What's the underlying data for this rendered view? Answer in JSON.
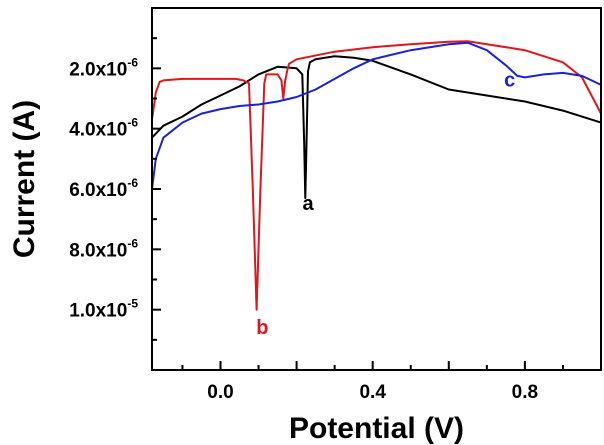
{
  "chart_data": {
    "type": "line",
    "xlabel": "Potential (V)",
    "ylabel": "Current (A)",
    "xlim": [
      -0.18,
      1.0
    ],
    "ylim": [
      -1.2e-05,
      0.0
    ],
    "x_ticks": [
      {
        "value": 0.0,
        "label": "0.0"
      },
      {
        "value": 0.2,
        "label": ""
      },
      {
        "value": 0.4,
        "label": "0.4"
      },
      {
        "value": 0.6,
        "label": ""
      },
      {
        "value": 0.8,
        "label": "0.8"
      }
    ],
    "y_ticks": [
      {
        "value": -2e-06,
        "mantissa": "2.0x10",
        "exponent": "-6"
      },
      {
        "value": -4e-06,
        "mantissa": "4.0x10",
        "exponent": "-6"
      },
      {
        "value": -6e-06,
        "mantissa": "6.0x10",
        "exponent": "-6"
      },
      {
        "value": -8e-06,
        "mantissa": "8.0x10",
        "exponent": "-6"
      },
      {
        "value": -1e-05,
        "mantissa": "1.0x10",
        "exponent": "-5"
      }
    ],
    "series": [
      {
        "name": "a",
        "color": "#000000",
        "x": [
          -0.18,
          -0.15,
          -0.1,
          -0.05,
          0.0,
          0.05,
          0.1,
          0.15,
          0.2,
          0.215,
          0.22,
          0.223,
          0.226,
          0.23,
          0.235,
          0.25,
          0.3,
          0.35,
          0.4,
          0.5,
          0.6,
          0.7,
          0.8,
          0.9,
          1.0
        ],
        "y": [
          -4.3e-06,
          -3.9e-06,
          -3.6e-06,
          -3.2e-06,
          -2.9e-06,
          -2.6e-06,
          -2.2e-06,
          -1.95e-06,
          -2e-06,
          -2.2e-06,
          -4.5e-06,
          -6.3e-06,
          -4.5e-06,
          -2.1e-06,
          -1.8e-06,
          -1.7e-06,
          -1.6e-06,
          -1.65e-06,
          -1.75e-06,
          -2.2e-06,
          -2.7e-06,
          -2.9e-06,
          -3.1e-06,
          -3.4e-06,
          -3.8e-06
        ],
        "label_point": [
          0.23,
          -6.7e-06
        ]
      },
      {
        "name": "b",
        "color": "#e0161b",
        "x": [
          -0.18,
          -0.17,
          -0.16,
          -0.15,
          -0.1,
          0.0,
          0.04,
          0.06,
          0.075,
          0.085,
          0.095,
          0.105,
          0.115,
          0.12,
          0.13,
          0.15,
          0.16,
          0.165,
          0.17,
          0.175,
          0.18,
          0.2,
          0.3,
          0.4,
          0.5,
          0.6,
          0.65,
          0.7,
          0.8,
          0.9,
          0.95,
          1.0
        ],
        "y": [
          -3.7e-06,
          -2.8e-06,
          -2.45e-06,
          -2.4e-06,
          -2.35e-06,
          -2.35e-06,
          -2.35e-06,
          -2.4e-06,
          -2.5e-06,
          -6e-06,
          -1e-05,
          -6e-06,
          -2.5e-06,
          -2.2e-06,
          -2.2e-06,
          -2.2e-06,
          -2.4e-06,
          -3e-06,
          -2.4e-06,
          -2.1e-06,
          -1.85e-06,
          -1.7e-06,
          -1.45e-06,
          -1.3e-06,
          -1.2e-06,
          -1.12e-06,
          -1.1e-06,
          -1.2e-06,
          -1.4e-06,
          -1.8e-06,
          -2.3e-06,
          -3.5e-06
        ],
        "label_point": [
          0.11,
          -1.08e-05
        ]
      },
      {
        "name": "c",
        "color": "#1a22d6",
        "x": [
          -0.18,
          -0.17,
          -0.15,
          -0.1,
          -0.05,
          0.0,
          0.05,
          0.1,
          0.15,
          0.2,
          0.25,
          0.3,
          0.35,
          0.4,
          0.5,
          0.6,
          0.65,
          0.7,
          0.75,
          0.78,
          0.8,
          0.85,
          0.9,
          0.95,
          1.0
        ],
        "y": [
          -6e-06,
          -5e-06,
          -4.3e-06,
          -3.8e-06,
          -3.5e-06,
          -3.35e-06,
          -3.25e-06,
          -3.2e-06,
          -3.1e-06,
          -2.95e-06,
          -2.7e-06,
          -2.35e-06,
          -2e-06,
          -1.7e-06,
          -1.4e-06,
          -1.2e-06,
          -1.15e-06,
          -1.4e-06,
          -1.9e-06,
          -2.25e-06,
          -2.3e-06,
          -2.2e-06,
          -2.15e-06,
          -2.25e-06,
          -2.55e-06
        ],
        "label_point": [
          0.76,
          -2.6e-06
        ]
      }
    ]
  }
}
